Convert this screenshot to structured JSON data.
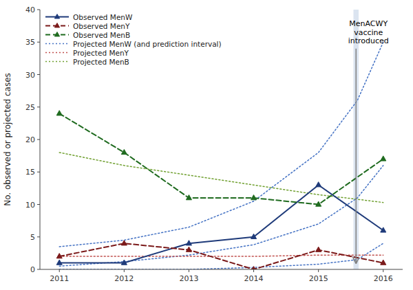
{
  "chart_data": {
    "type": "line",
    "ylabel": "No. observed or projected cases",
    "xlim": [
      2010.7,
      2016.3
    ],
    "ylim": [
      0,
      40
    ],
    "xticks": [
      2011,
      2012,
      2013,
      2014,
      2015,
      2016
    ],
    "yticks": [
      0,
      5,
      10,
      15,
      20,
      25,
      30,
      35,
      40
    ],
    "grid": false,
    "legend": "upper left",
    "series": [
      {
        "name": "Observed MenW",
        "color": "#1f3b7a",
        "line_style": "solid",
        "marker": "triangle",
        "x": [
          2011,
          2012,
          2013,
          2014,
          2015,
          2016
        ],
        "values": [
          1,
          1,
          4,
          5,
          13,
          6
        ]
      },
      {
        "name": "Observed MenY",
        "color": "#7b1a1a",
        "line_style": "dashed",
        "marker": "triangle",
        "x": [
          2011,
          2012,
          2013,
          2014,
          2015,
          2016
        ],
        "values": [
          2,
          4,
          3,
          0,
          3,
          1
        ]
      },
      {
        "name": "Observed MenB",
        "color": "#1f6b1f",
        "line_style": "dashed",
        "marker": "triangle",
        "x": [
          2011,
          2012,
          2013,
          2014,
          2015,
          2016
        ],
        "values": [
          24,
          18,
          11,
          11,
          10,
          17
        ]
      },
      {
        "name": "Projected MenW (and prediction interval)",
        "color": "#4472c4",
        "line_style": "dotted",
        "marker": "none",
        "x": [
          2011,
          2012,
          2013,
          2014,
          2015,
          2015.6,
          2016
        ],
        "values": [
          0.5,
          1.2,
          2.2,
          3.8,
          7.0,
          11.0,
          16.0
        ],
        "upper": [
          3.5,
          4.5,
          6.5,
          10.5,
          18.0,
          26.0,
          35.0
        ],
        "lower": [
          0.0,
          0.0,
          0.0,
          0.3,
          0.8,
          1.5,
          4.0
        ]
      },
      {
        "name": "Projected MenY",
        "color": "#c0504d",
        "line_style": "dotted",
        "marker": "none",
        "x": [
          2011,
          2012,
          2013,
          2014,
          2015,
          2016
        ],
        "values": [
          2.0,
          2.0,
          2.0,
          2.0,
          2.2,
          2.2
        ]
      },
      {
        "name": "Projected MenB",
        "color": "#70a030",
        "line_style": "dotted",
        "marker": "none",
        "x": [
          2011,
          2012,
          2013,
          2014,
          2015,
          2015.6,
          2016
        ],
        "values": [
          18.0,
          16.0,
          14.5,
          13.0,
          11.5,
          10.8,
          10.3
        ]
      }
    ],
    "vaccine": {
      "text": "MenACWY\nvaccine\nintroduced",
      "x": 2015.58,
      "half_width": 0.04,
      "color": "lightsteelblue",
      "label_y": 38.5,
      "arrow_from": 34.0,
      "arrow_to": 1.0
    }
  }
}
